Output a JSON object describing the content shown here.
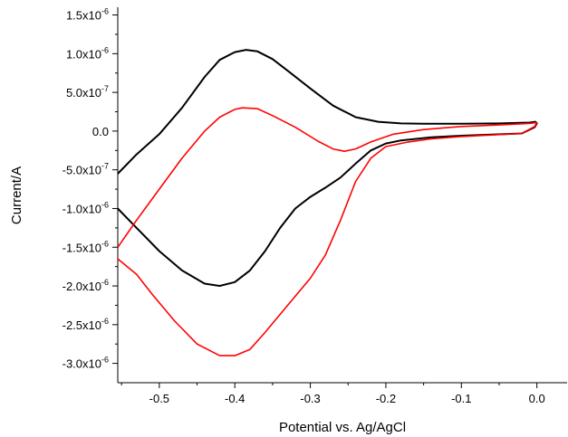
{
  "chart_data": {
    "type": "line",
    "title": "",
    "xlabel": "Potential vs. Ag/AgCl",
    "ylabel": "Current/A",
    "xlim": [
      -0.555,
      0.04
    ],
    "ylim": [
      -3.25e-06,
      1.6e-06
    ],
    "x_ticks": [
      {
        "value": -0.5,
        "label": "-0.5"
      },
      {
        "value": -0.4,
        "label": "-0.4"
      },
      {
        "value": -0.3,
        "label": "-0.3"
      },
      {
        "value": -0.2,
        "label": "-0.2"
      },
      {
        "value": -0.1,
        "label": "-0.1"
      },
      {
        "value": 0.0,
        "label": "0.0"
      }
    ],
    "y_ticks": [
      {
        "value": 1.5e-06,
        "mant": "1.5x10",
        "exp": "-6"
      },
      {
        "value": 1e-06,
        "mant": "1.0x10",
        "exp": "-6"
      },
      {
        "value": 5e-07,
        "mant": "5.0x10",
        "exp": "-7"
      },
      {
        "value": 0.0,
        "mant": "0.0",
        "exp": ""
      },
      {
        "value": -5e-07,
        "mant": "-5.0x10",
        "exp": "-7"
      },
      {
        "value": -1e-06,
        "mant": "-1.0x10",
        "exp": "-6"
      },
      {
        "value": -1.5e-06,
        "mant": "-1.5x10",
        "exp": "-6"
      },
      {
        "value": -2e-06,
        "mant": "-2.0x10",
        "exp": "-6"
      },
      {
        "value": -2.5e-06,
        "mant": "-2.5x10",
        "exp": "-6"
      },
      {
        "value": -3e-06,
        "mant": "-3.0x10",
        "exp": "-6"
      }
    ],
    "grid": false,
    "legend": "none",
    "series": [
      {
        "color": "#000000",
        "points": [
          [
            -0.555,
            -5.5e-07
          ],
          [
            -0.53,
            -3e-07
          ],
          [
            -0.5,
            -4e-08
          ],
          [
            -0.47,
            3e-07
          ],
          [
            -0.44,
            7e-07
          ],
          [
            -0.42,
            9.2e-07
          ],
          [
            -0.4,
            1.02e-06
          ],
          [
            -0.385,
            1.05e-06
          ],
          [
            -0.37,
            1.03e-06
          ],
          [
            -0.35,
            9.3e-07
          ],
          [
            -0.33,
            7.8e-07
          ],
          [
            -0.3,
            5.5e-07
          ],
          [
            -0.27,
            3.3e-07
          ],
          [
            -0.24,
            1.8e-07
          ],
          [
            -0.21,
            1.2e-07
          ],
          [
            -0.18,
            1e-07
          ],
          [
            -0.15,
            9.5e-08
          ],
          [
            -0.1,
            9.5e-08
          ],
          [
            -0.05,
            1e-07
          ],
          [
            -0.01,
            1.1e-07
          ],
          [
            -0.002,
            1.2e-07
          ],
          [
            0.0,
            1e-07
          ],
          [
            -0.003,
            5e-08
          ],
          [
            -0.02,
            -3e-08
          ],
          [
            -0.06,
            -4.5e-08
          ],
          [
            -0.1,
            -6e-08
          ],
          [
            -0.14,
            -8e-08
          ],
          [
            -0.18,
            -1.2e-07
          ],
          [
            -0.2,
            -1.6e-07
          ],
          [
            -0.22,
            -2.5e-07
          ],
          [
            -0.24,
            -4.2e-07
          ],
          [
            -0.26,
            -6e-07
          ],
          [
            -0.28,
            -7.3e-07
          ],
          [
            -0.3,
            -8.5e-07
          ],
          [
            -0.32,
            -1e-06
          ],
          [
            -0.34,
            -1.25e-06
          ],
          [
            -0.36,
            -1.55e-06
          ],
          [
            -0.38,
            -1.8e-06
          ],
          [
            -0.4,
            -1.95e-06
          ],
          [
            -0.42,
            -2e-06
          ],
          [
            -0.44,
            -1.97e-06
          ],
          [
            -0.47,
            -1.8e-06
          ],
          [
            -0.5,
            -1.55e-06
          ],
          [
            -0.53,
            -1.25e-06
          ],
          [
            -0.555,
            -1e-06
          ]
        ]
      },
      {
        "color": "#ff0000",
        "points": [
          [
            -0.555,
            -1.5e-06
          ],
          [
            -0.53,
            -1.15e-06
          ],
          [
            -0.5,
            -7.5e-07
          ],
          [
            -0.47,
            -3.5e-07
          ],
          [
            -0.44,
            0.0
          ],
          [
            -0.42,
            1.8e-07
          ],
          [
            -0.4,
            2.8e-07
          ],
          [
            -0.39,
            3e-07
          ],
          [
            -0.37,
            2.9e-07
          ],
          [
            -0.35,
            2e-07
          ],
          [
            -0.32,
            5e-08
          ],
          [
            -0.29,
            -1.3e-07
          ],
          [
            -0.27,
            -2.3e-07
          ],
          [
            -0.255,
            -2.6e-07
          ],
          [
            -0.24,
            -2.3e-07
          ],
          [
            -0.22,
            -1.4e-07
          ],
          [
            -0.19,
            -4e-08
          ],
          [
            -0.15,
            2e-08
          ],
          [
            -0.1,
            6e-08
          ],
          [
            -0.05,
            8e-08
          ],
          [
            -0.01,
            1e-07
          ],
          [
            0.0,
            1.1e-07
          ],
          [
            -0.003,
            6e-08
          ],
          [
            -0.02,
            -3e-08
          ],
          [
            -0.06,
            -5e-08
          ],
          [
            -0.1,
            -7e-08
          ],
          [
            -0.14,
            -1e-07
          ],
          [
            -0.17,
            -1.4e-07
          ],
          [
            -0.2,
            -2e-07
          ],
          [
            -0.22,
            -3.5e-07
          ],
          [
            -0.24,
            -6.5e-07
          ],
          [
            -0.26,
            -1.15e-06
          ],
          [
            -0.28,
            -1.6e-06
          ],
          [
            -0.3,
            -1.9e-06
          ],
          [
            -0.33,
            -2.25e-06
          ],
          [
            -0.36,
            -2.6e-06
          ],
          [
            -0.38,
            -2.82e-06
          ],
          [
            -0.4,
            -2.9e-06
          ],
          [
            -0.42,
            -2.9e-06
          ],
          [
            -0.45,
            -2.75e-06
          ],
          [
            -0.48,
            -2.45e-06
          ],
          [
            -0.51,
            -2.1e-06
          ],
          [
            -0.53,
            -1.85e-06
          ],
          [
            -0.555,
            -1.65e-06
          ]
        ]
      }
    ]
  }
}
